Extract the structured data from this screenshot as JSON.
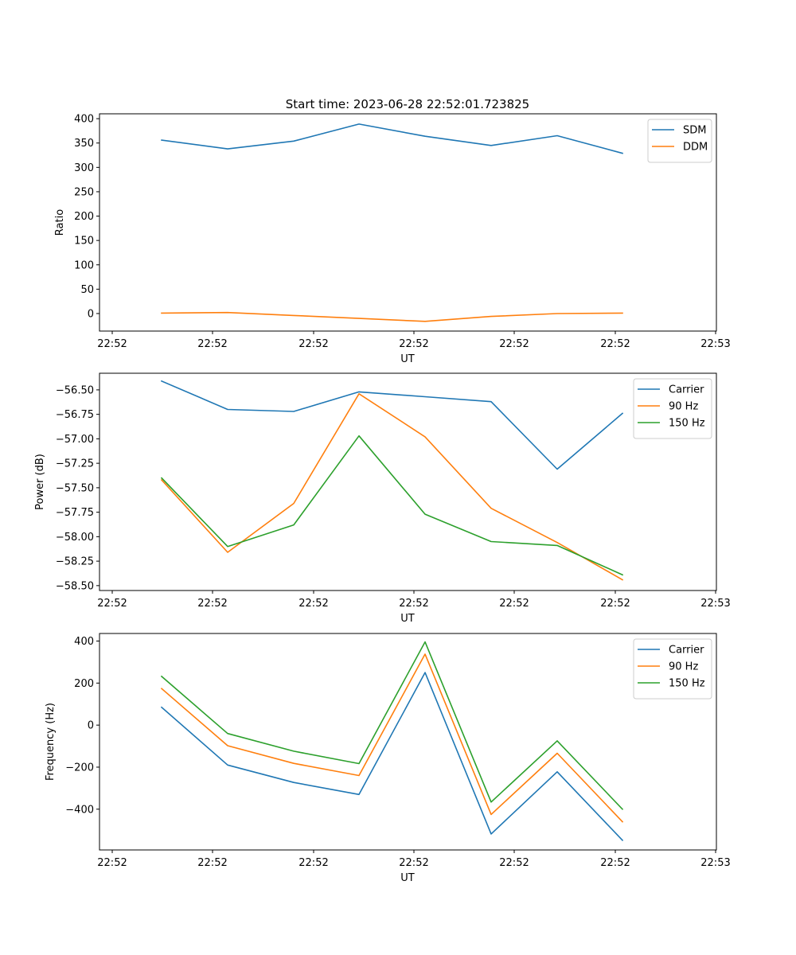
{
  "figure_title": "Start time: 2023-06-28 22:52:01.723825",
  "colors": {
    "blue": "#1f77b4",
    "orange": "#ff7f0e",
    "green": "#2ca02c"
  },
  "chart_data": [
    {
      "type": "line",
      "title": "Start time: 2023-06-28 22:52:01.723825",
      "xlabel": "UT",
      "ylabel": "Ratio",
      "x_tick_labels": [
        "22:52",
        "22:52",
        "22:52",
        "22:52",
        "22:52",
        "22:52",
        "22:53"
      ],
      "y_ticks": [
        0,
        50,
        100,
        150,
        200,
        250,
        300,
        350,
        400
      ],
      "ylim": [
        -36,
        410
      ],
      "grid": false,
      "legend": "top-right",
      "series": [
        {
          "name": "SDM",
          "color": "#1f77b4",
          "values": [
            356,
            338,
            354,
            389,
            364,
            345,
            365,
            329
          ]
        },
        {
          "name": "DDM",
          "color": "#ff7f0e",
          "values": [
            1,
            2,
            -4,
            -10,
            -16,
            -6,
            0,
            1
          ]
        }
      ]
    },
    {
      "type": "line",
      "title": "",
      "xlabel": "UT",
      "ylabel": "Power (dB)",
      "x_tick_labels": [
        "22:52",
        "22:52",
        "22:52",
        "22:52",
        "22:52",
        "22:52",
        "22:53"
      ],
      "y_ticks": [
        -58.5,
        -58.25,
        -58.0,
        -57.75,
        -57.5,
        -57.25,
        -57.0,
        -56.75,
        -56.5
      ],
      "y_tick_labels": [
        "−58.50",
        "−58.25",
        "−58.00",
        "−57.75",
        "−57.50",
        "−57.25",
        "−57.00",
        "−56.75",
        "−56.50"
      ],
      "ylim": [
        -58.55,
        -56.33
      ],
      "grid": false,
      "legend": "top-right",
      "series": [
        {
          "name": "Carrier",
          "color": "#1f77b4",
          "values": [
            -56.41,
            -56.7,
            -56.72,
            -56.52,
            -56.57,
            -56.62,
            -57.31,
            -56.74
          ]
        },
        {
          "name": "90 Hz",
          "color": "#ff7f0e",
          "values": [
            -57.42,
            -58.16,
            -57.66,
            -56.54,
            -56.98,
            -57.71,
            -58.06,
            -58.44
          ]
        },
        {
          "name": "150 Hz",
          "color": "#2ca02c",
          "values": [
            -57.4,
            -58.1,
            -57.88,
            -56.97,
            -57.77,
            -58.05,
            -58.09,
            -58.39
          ]
        }
      ]
    },
    {
      "type": "line",
      "title": "",
      "xlabel": "UT",
      "ylabel": "Frequency (Hz)",
      "x_tick_labels": [
        "22:52",
        "22:52",
        "22:52",
        "22:52",
        "22:52",
        "22:52",
        "22:53"
      ],
      "y_ticks": [
        -400,
        -200,
        0,
        200,
        400
      ],
      "y_tick_labels": [
        "−400",
        "−200",
        "0",
        "200",
        "400"
      ],
      "ylim": [
        -594,
        436
      ],
      "grid": false,
      "legend": "top-right",
      "series": [
        {
          "name": "Carrier",
          "color": "#1f77b4",
          "values": [
            85,
            -190,
            -273,
            -330,
            250,
            -518,
            -222,
            -548
          ]
        },
        {
          "name": "90 Hz",
          "color": "#ff7f0e",
          "values": [
            174,
            -98,
            -182,
            -240,
            338,
            -425,
            -134,
            -460
          ]
        },
        {
          "name": "150 Hz",
          "color": "#2ca02c",
          "values": [
            232,
            -40,
            -124,
            -183,
            396,
            -366,
            -75,
            -400
          ]
        }
      ]
    }
  ]
}
